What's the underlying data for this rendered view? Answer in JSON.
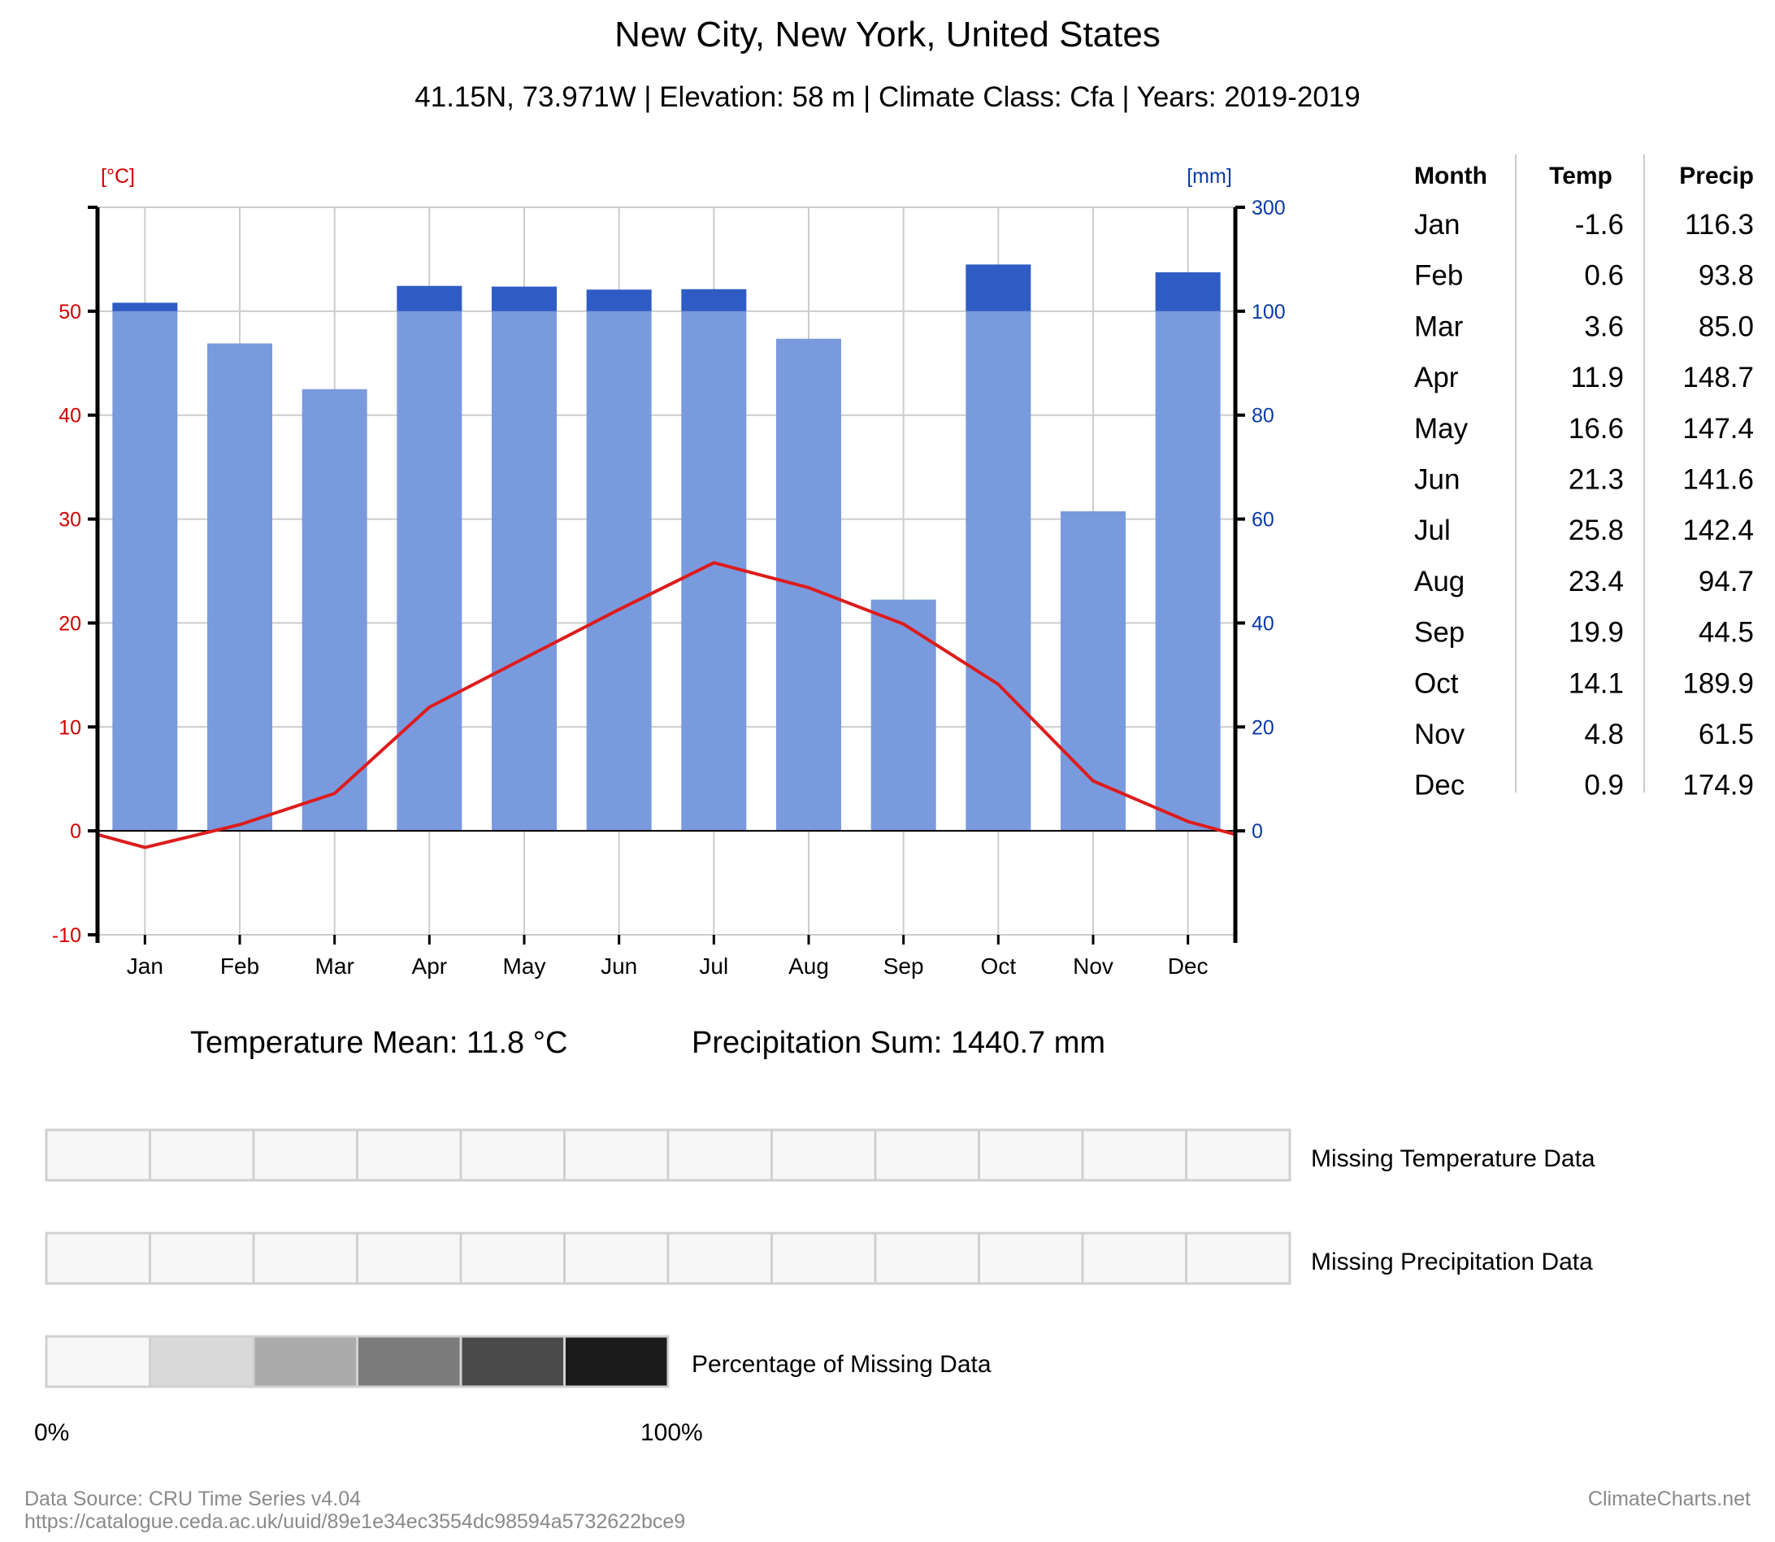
{
  "title": "New City, New York, United States",
  "subtitle": "41.15N, 73.971W | Elevation: 58 m | Climate Class: Cfa | Years: 2019-2019",
  "colors": {
    "temperature": "#dd1c1c",
    "precip_bar": "#7a9ade",
    "precip_excess": "#2f5cc4",
    "left_axis": "#d40000",
    "right_axis": "#0a3aa8",
    "grid": "#cccccc",
    "missing_scale": [
      "#f7f7f7",
      "#d9d9d9",
      "#ababab",
      "#7b7b7b",
      "#4b4b4b",
      "#1b1b1b"
    ]
  },
  "chart_data": {
    "type": "bar+line",
    "categories": [
      "Jan",
      "Feb",
      "Mar",
      "Apr",
      "May",
      "Jun",
      "Jul",
      "Aug",
      "Sep",
      "Oct",
      "Nov",
      "Dec"
    ],
    "series": [
      {
        "name": "Temp",
        "type": "line",
        "axis": "left",
        "values": [
          -1.6,
          0.6,
          3.6,
          11.9,
          16.6,
          21.3,
          25.8,
          23.4,
          19.9,
          14.1,
          4.8,
          0.9
        ]
      },
      {
        "name": "Precip",
        "type": "bar",
        "axis": "right",
        "values": [
          116.3,
          93.8,
          85.0,
          148.7,
          147.4,
          141.6,
          142.4,
          94.7,
          44.5,
          189.9,
          61.5,
          174.9
        ]
      }
    ],
    "left_axis": {
      "unit_label": "[°C]",
      "ylim": [
        -10,
        60
      ],
      "ticks": [
        "-10",
        "0",
        "10",
        "20",
        "30",
        "40",
        "50"
      ]
    },
    "right_axis": {
      "unit_label": "[mm]",
      "ticks": [
        "0",
        "20",
        "40",
        "60",
        "80",
        "100",
        "300"
      ]
    },
    "grid": true
  },
  "stats": {
    "temp_mean": "Temperature Mean: 11.8 °C",
    "precip_sum": "Precipitation Sum: 1440.7 mm"
  },
  "table": {
    "headers": [
      "Month",
      "Temp",
      "Precip"
    ],
    "rows": [
      [
        "Jan",
        "-1.6",
        "116.3"
      ],
      [
        "Feb",
        "0.6",
        "93.8"
      ],
      [
        "Mar",
        "3.6",
        "85.0"
      ],
      [
        "Apr",
        "11.9",
        "148.7"
      ],
      [
        "May",
        "16.6",
        "147.4"
      ],
      [
        "Jun",
        "21.3",
        "141.6"
      ],
      [
        "Jul",
        "25.8",
        "142.4"
      ],
      [
        "Aug",
        "23.4",
        "94.7"
      ],
      [
        "Sep",
        "19.9",
        "44.5"
      ],
      [
        "Oct",
        "14.1",
        "189.9"
      ],
      [
        "Nov",
        "4.8",
        "61.5"
      ],
      [
        "Dec",
        "0.9",
        "174.9"
      ]
    ]
  },
  "missing": {
    "temp_label": "Missing Temperature Data",
    "precip_label": "Missing Precipitation Data",
    "scale_label": "Percentage of Missing Data",
    "scale_min": "0%",
    "scale_max": "100%",
    "temp_fraction": [
      0,
      0,
      0,
      0,
      0,
      0,
      0,
      0,
      0,
      0,
      0,
      0
    ],
    "precip_fraction": [
      0,
      0,
      0,
      0,
      0,
      0,
      0,
      0,
      0,
      0,
      0,
      0
    ]
  },
  "source": {
    "line1": "Data Source: CRU Time Series v4.04",
    "line2": "https://catalogue.ceda.ac.uk/uuid/89e1e34ec3554dc98594a5732622bce9",
    "brand": "ClimateCharts.net"
  }
}
